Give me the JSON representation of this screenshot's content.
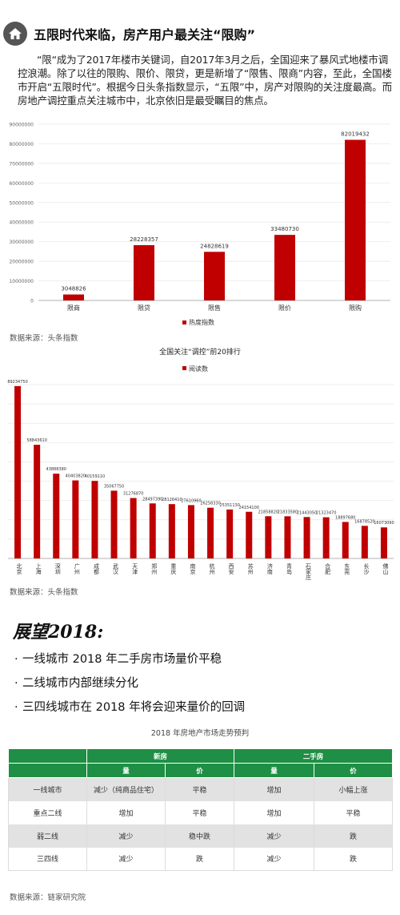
{
  "header": {
    "title": "五限时代来临，房产用户最关注“限购”"
  },
  "intro": {
    "text": "“限“成为了2017年楼市关键词，自2017年3月之后，全国迎来了暴风式地楼市调控浪潮。除了以往的限购、限价、限贷，更是新增了“限售、限商”内容，至此，全国楼市开启“五限时代”。根据今日头条指数显示，“五限”中，房产对限购的关注度最高。而房地产调控重点关注城市中，北京依旧是最受瞩目的焦点。"
  },
  "colors": {
    "bar": "#c00000",
    "header_green": "#1e8f44",
    "shade": "#e2e2e2"
  },
  "chart_data": [
    {
      "type": "bar",
      "title": "",
      "categories": [
        "限商",
        "限贷",
        "限售",
        "限价",
        "限购"
      ],
      "values": [
        3048826,
        28228357,
        24828619,
        33480730,
        82019432
      ],
      "value_labels": [
        "3048826",
        "28228357",
        "24828619",
        "33480730",
        "82019432"
      ],
      "ylim": [
        0,
        90000000
      ],
      "y_ticks": [
        "0",
        "10000000",
        "20000000",
        "30000000",
        "40000000",
        "50000000",
        "60000000",
        "70000000",
        "80000000",
        "90000000"
      ],
      "series": [
        {
          "name": "热度指数",
          "values": [
            3048826,
            28228357,
            24828619,
            33480730,
            82019432
          ]
        }
      ],
      "legend": "bottom",
      "grid": true
    },
    {
      "type": "bar",
      "title": "全国关注“调控”前20排行",
      "categories": [
        "北京",
        "上海",
        "深圳",
        "广州",
        "成都",
        "武汉",
        "天津",
        "郑州",
        "重庆",
        "南京",
        "杭州",
        "西安",
        "苏州",
        "济南",
        "青岛",
        "石家庄",
        "合肥",
        "东莞",
        "长沙",
        "佛山"
      ],
      "values": [
        89234750,
        58843610,
        43888380,
        40403820,
        40159110,
        35067750,
        31276870,
        28497390,
        28126410,
        27610960,
        26258330,
        25351130,
        24154100,
        21858820,
        21833580,
        21443050,
        21323470,
        18897680,
        16878520,
        16073090
      ],
      "value_labels": [
        "89234750",
        "58843610",
        "43888380",
        "40403820",
        "40159110",
        "35067750",
        "31276870",
        "28497390",
        "28126410",
        "27610960",
        "26258330",
        "25351130",
        "24154100",
        "21858820",
        "21833580",
        "21443050",
        "21323470",
        "18897680",
        "16878520",
        "16073090"
      ],
      "ylim": [
        0,
        90000000
      ],
      "series": [
        {
          "name": "阅读数",
          "values": [
            89234750,
            58843610,
            43888380,
            40403820,
            40159110,
            35067750,
            31276870,
            28497390,
            28126410,
            27610960,
            26258330,
            25351130,
            24154100,
            21858820,
            21833580,
            21443050,
            21323470,
            18897680,
            16878520,
            16073090
          ]
        }
      ],
      "legend": "top",
      "grid": true
    }
  ],
  "sources": {
    "chart1": "数据来源：头条指数",
    "chart2": "数据来源：头条指数",
    "table": "数据来源：链家研究院"
  },
  "outlook": {
    "title": "展望2018:",
    "bullets": [
      "一线城市 2018 年二手房市场量价平稳",
      "二线城市内部继续分化",
      "三四线城市在 2018 年将会迎来量价的回调"
    ]
  },
  "forecast_table": {
    "title": "2018 年房地产市场走势预判",
    "group_headers": [
      "新房",
      "二手房"
    ],
    "sub_headers": [
      "量",
      "价",
      "量",
      "价"
    ],
    "rows": [
      [
        "一线城市",
        "减少（纯商品住宅）",
        "平稳",
        "增加",
        "小幅上涨"
      ],
      [
        "重点二线",
        "增加",
        "平稳",
        "增加",
        "平稳"
      ],
      [
        "弱二线",
        "减少",
        "稳中跌",
        "减少",
        "跌"
      ],
      [
        "三四线",
        "减少",
        "跌",
        "减少",
        "跌"
      ]
    ]
  }
}
